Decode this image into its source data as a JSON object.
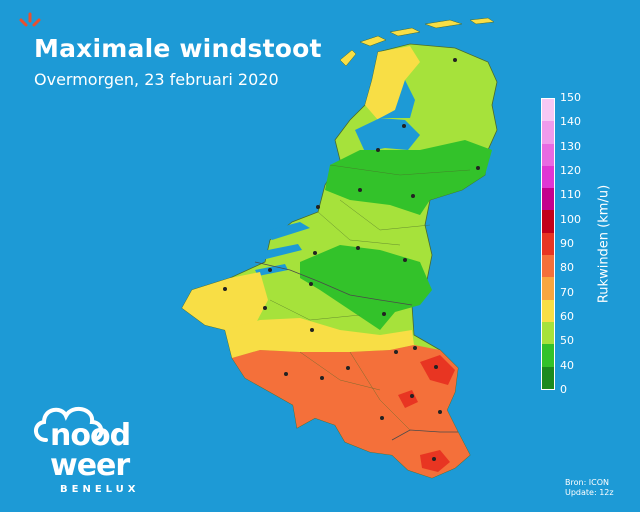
{
  "header": {
    "title": "Maximale windstoot",
    "subtitle": "Overmorgen, 23 februari 2020"
  },
  "legend": {
    "label": "Rukwinden (km/u)",
    "ticks": [
      "150",
      "140",
      "130",
      "120",
      "110",
      "100",
      "90",
      "80",
      "70",
      "60",
      "50",
      "40",
      "0"
    ],
    "colors": [
      "#f6c8f4",
      "#ef9bec",
      "#e86ae2",
      "#df36d4",
      "#c4008e",
      "#c2001a",
      "#e83522",
      "#f4703a",
      "#f8a63f",
      "#f8de45",
      "#a6e23b",
      "#33c22a",
      "#1c8a1f"
    ]
  },
  "brand": {
    "line1": "nood",
    "line2": "weer",
    "line3": "BENELUX",
    "accent": "#e8502f"
  },
  "source": {
    "line1": "Bron: ICON",
    "line2": "Update: 12z"
  }
}
